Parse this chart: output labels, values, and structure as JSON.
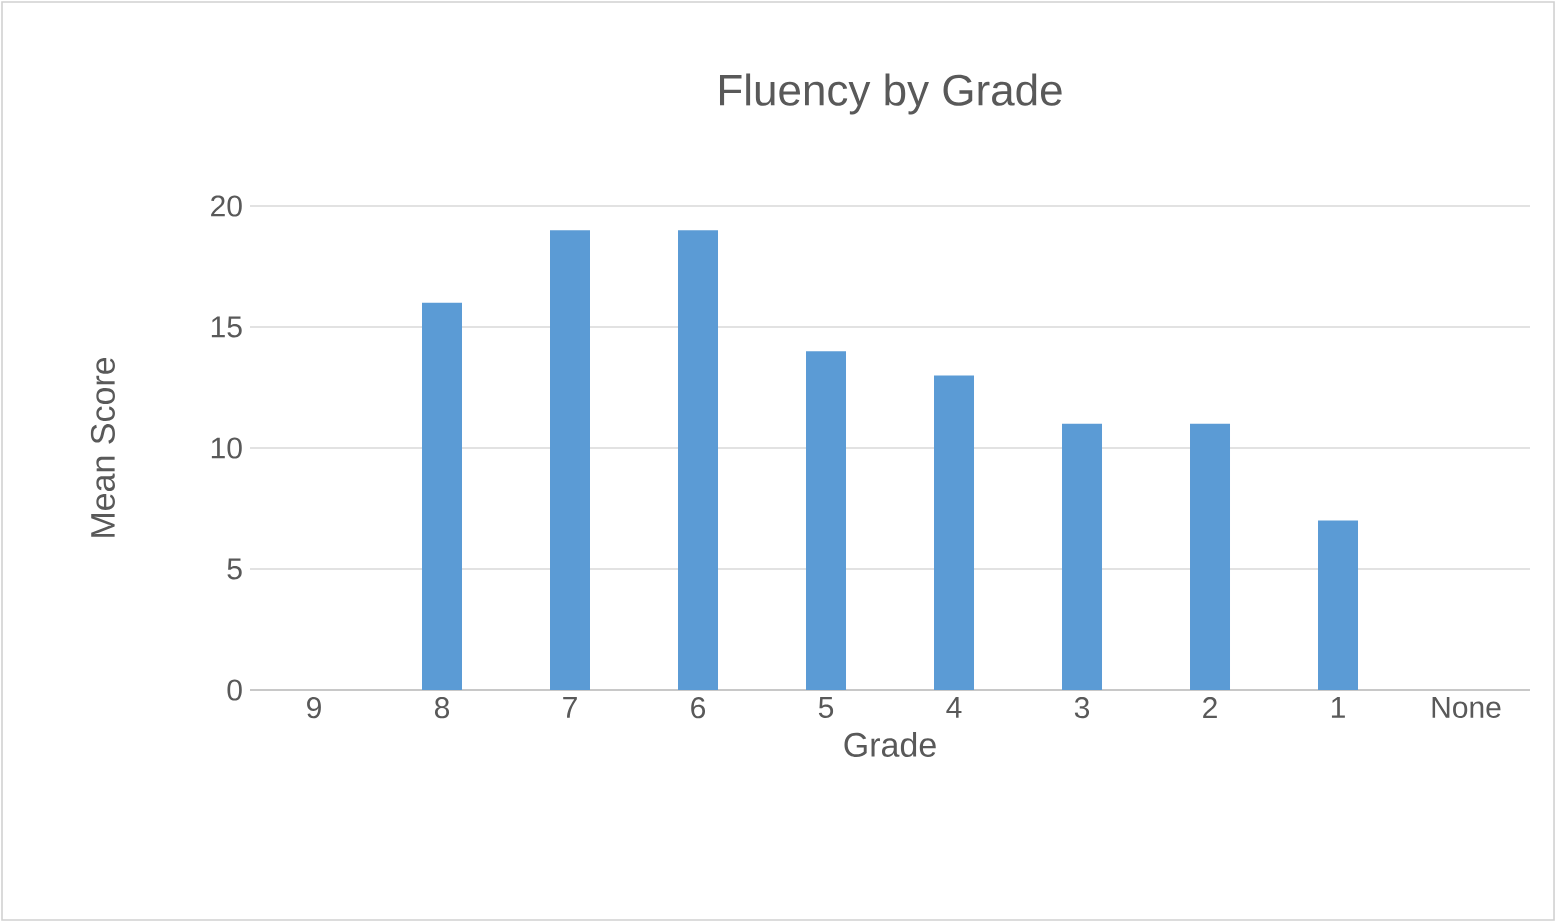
{
  "chart_data": {
    "type": "bar",
    "title": "Fluency by Grade",
    "xlabel": "Grade",
    "ylabel": "Mean Score",
    "categories": [
      "9",
      "8",
      "7",
      "6",
      "5",
      "4",
      "3",
      "2",
      "1",
      "None"
    ],
    "values": [
      0,
      16,
      19,
      19,
      14,
      13,
      11,
      11,
      7,
      0
    ],
    "color": "#5b9bd5",
    "ylim": [
      0,
      20
    ],
    "yticks": [
      0,
      5,
      10,
      15,
      20
    ],
    "grid": "y"
  }
}
